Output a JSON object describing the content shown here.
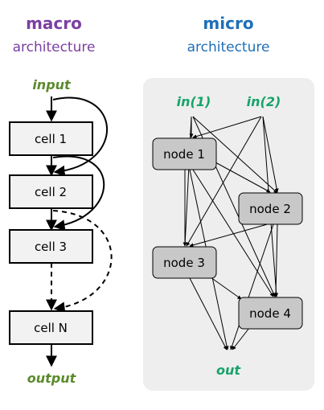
{
  "colors": {
    "macro": "#7b3fa1",
    "micro": "#1f6fb8",
    "macro_io": "#5b8a2c",
    "micro_io": "#18a36a",
    "panel": "#eeeeee",
    "cell_fill": "#f2f2f2",
    "node_fill": "#c8c8c8"
  },
  "macro": {
    "title": "macro",
    "subtitle": "architecture",
    "input": "input",
    "output": "output",
    "cells": [
      "cell 1",
      "cell 2",
      "cell 3",
      "cell N"
    ]
  },
  "micro": {
    "title": "micro",
    "subtitle": "architecture",
    "inputs": [
      "in(1)",
      "in(2)"
    ],
    "output": "out",
    "nodes": [
      "node 1",
      "node 2",
      "node 3",
      "node 4"
    ]
  }
}
